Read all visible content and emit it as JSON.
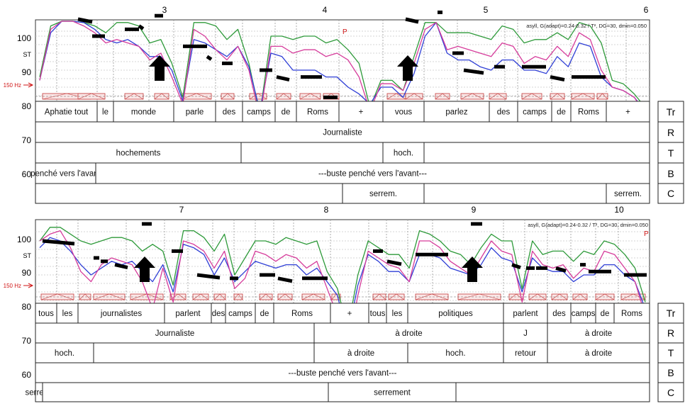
{
  "chart_data": [
    {
      "type": "line",
      "panel": "top",
      "time_ticks": [
        "3",
        "4",
        "5",
        "6"
      ],
      "y_ticks": [
        "100",
        "90",
        "80",
        "70",
        "60"
      ],
      "unit_label": "ST",
      "ref_label": "150 Hz",
      "prosogram_info": "asyll, G(adapt)=0.24-0.32 / T², DG=30, dmin=0.050",
      "marker": "P",
      "series": [
        {
          "color": "#2e9a3a",
          "values": [
            88,
            103,
            106,
            105,
            104,
            103,
            101,
            104,
            104,
            103,
            98,
            99,
            92,
            82,
            104,
            104,
            103,
            99,
            102,
            92,
            77,
            100,
            100,
            99,
            100,
            100,
            98,
            99,
            96,
            92,
            79,
            87,
            87,
            84,
            94,
            104,
            104,
            101,
            101,
            101,
            100,
            99,
            103,
            102,
            98,
            99,
            99,
            101,
            99,
            104,
            103,
            98,
            87,
            86,
            83,
            79
          ]
        },
        {
          "color": "#2f3fd6",
          "values": [
            87,
            101,
            105,
            106,
            104,
            102,
            99,
            98,
            99,
            97,
            94,
            94,
            90,
            81,
            99,
            98,
            96,
            94,
            97,
            91,
            78,
            95,
            94,
            90,
            90,
            90,
            88,
            88,
            85,
            83,
            80,
            85,
            85,
            82,
            89,
            100,
            104,
            95,
            93,
            93,
            91,
            90,
            93,
            93,
            90,
            90,
            89,
            94,
            91,
            98,
            97,
            88,
            85,
            84,
            82,
            78
          ]
        },
        {
          "color": "#d63c9b",
          "values": [
            87,
            102,
            106,
            106,
            103,
            101,
            98,
            99,
            98,
            97,
            93,
            95,
            88,
            80,
            102,
            100,
            96,
            93,
            97,
            90,
            76,
            97,
            97,
            95,
            96,
            96,
            94,
            95,
            93,
            88,
            78,
            86,
            86,
            84,
            92,
            102,
            104,
            96,
            97,
            96,
            95,
            94,
            98,
            97,
            92,
            94,
            93,
            97,
            94,
            101,
            99,
            90,
            85,
            84,
            82,
            77
          ]
        }
      ],
      "tiers": {
        "Tr": [
          "Aphatie tout",
          "le",
          "monde",
          "parle",
          "des",
          "camps",
          "de",
          "Roms",
          "+",
          "vous",
          "parlez",
          "des",
          "camps",
          "de",
          "Roms",
          "+"
        ],
        "R": [
          "Journaliste"
        ],
        "T": [
          "hochements",
          "",
          "hoch.",
          ""
        ],
        "B": [
          "penché vers l'avant",
          "---buste penché vers l'avant---"
        ],
        "C": [
          "",
          "serrem.",
          "",
          "serrem."
        ]
      }
    },
    {
      "type": "line",
      "panel": "bottom",
      "time_ticks": [
        "7",
        "8",
        "9",
        "10"
      ],
      "y_ticks": [
        "100",
        "90",
        "80",
        "70",
        "60"
      ],
      "unit_label": "ST",
      "ref_label": "150 Hz",
      "prosogram_info": "asyll, G(adapt)=0.24-0.32 / T², DG=30, dmin=0.050",
      "marker": "P",
      "series": [
        {
          "color": "#2e9a3a",
          "values": [
            100,
            104,
            104,
            102,
            100,
            99,
            100,
            101,
            101,
            100,
            97,
            99,
            97,
            87,
            103,
            103,
            101,
            97,
            102,
            90,
            95,
            100,
            100,
            99,
            101,
            100,
            99,
            100,
            91,
            86,
            74,
            90,
            100,
            98,
            96,
            96,
            92,
            103,
            102,
            100,
            97,
            96,
            93,
            98,
            102,
            100,
            100,
            86,
            100,
            96,
            97,
            97,
            94,
            97,
            96,
            100,
            99,
            96,
            92,
            82
          ]
        },
        {
          "color": "#2f3fd6",
          "values": [
            98,
            101,
            100,
            97,
            93,
            90,
            92,
            94,
            93,
            94,
            91,
            88,
            93,
            85,
            99,
            98,
            96,
            90,
            95,
            88,
            91,
            94,
            93,
            92,
            93,
            93,
            90,
            92,
            88,
            84,
            72,
            87,
            96,
            94,
            91,
            91,
            88,
            96,
            96,
            95,
            92,
            91,
            90,
            93,
            98,
            95,
            94,
            85,
            95,
            92,
            91,
            91,
            88,
            90,
            90,
            93,
            93,
            90,
            88,
            80
          ]
        },
        {
          "color": "#d63c9b",
          "values": [
            100,
            102,
            103,
            98,
            91,
            88,
            93,
            95,
            94,
            93,
            88,
            80,
            92,
            82,
            100,
            99,
            97,
            92,
            97,
            86,
            89,
            97,
            96,
            94,
            96,
            95,
            92,
            94,
            86,
            78,
            68,
            84,
            97,
            95,
            93,
            92,
            88,
            100,
            100,
            98,
            94,
            92,
            90,
            95,
            100,
            97,
            96,
            82,
            97,
            93,
            92,
            93,
            89,
            92,
            91,
            97,
            96,
            92,
            88,
            78
          ]
        }
      ],
      "tiers": {
        "Tr": [
          "tous",
          "les",
          "journalistes",
          "parlent",
          "des",
          "camps",
          "de",
          "Roms",
          "+",
          "tous",
          "les",
          "politiques",
          "parlent",
          "des",
          "camps",
          "de",
          "Roms"
        ],
        "R": [
          "Journaliste",
          "à droite",
          "J",
          "à droite"
        ],
        "T": [
          "hoch.",
          "",
          "à droite",
          "hoch.",
          "retour",
          "à droite"
        ],
        "B": [
          "---buste penché vers l'avant---"
        ],
        "C": [
          "serrem.",
          "",
          "serrement",
          ""
        ]
      }
    }
  ],
  "tier_codes": [
    "Tr",
    "R",
    "T",
    "B",
    "C"
  ]
}
